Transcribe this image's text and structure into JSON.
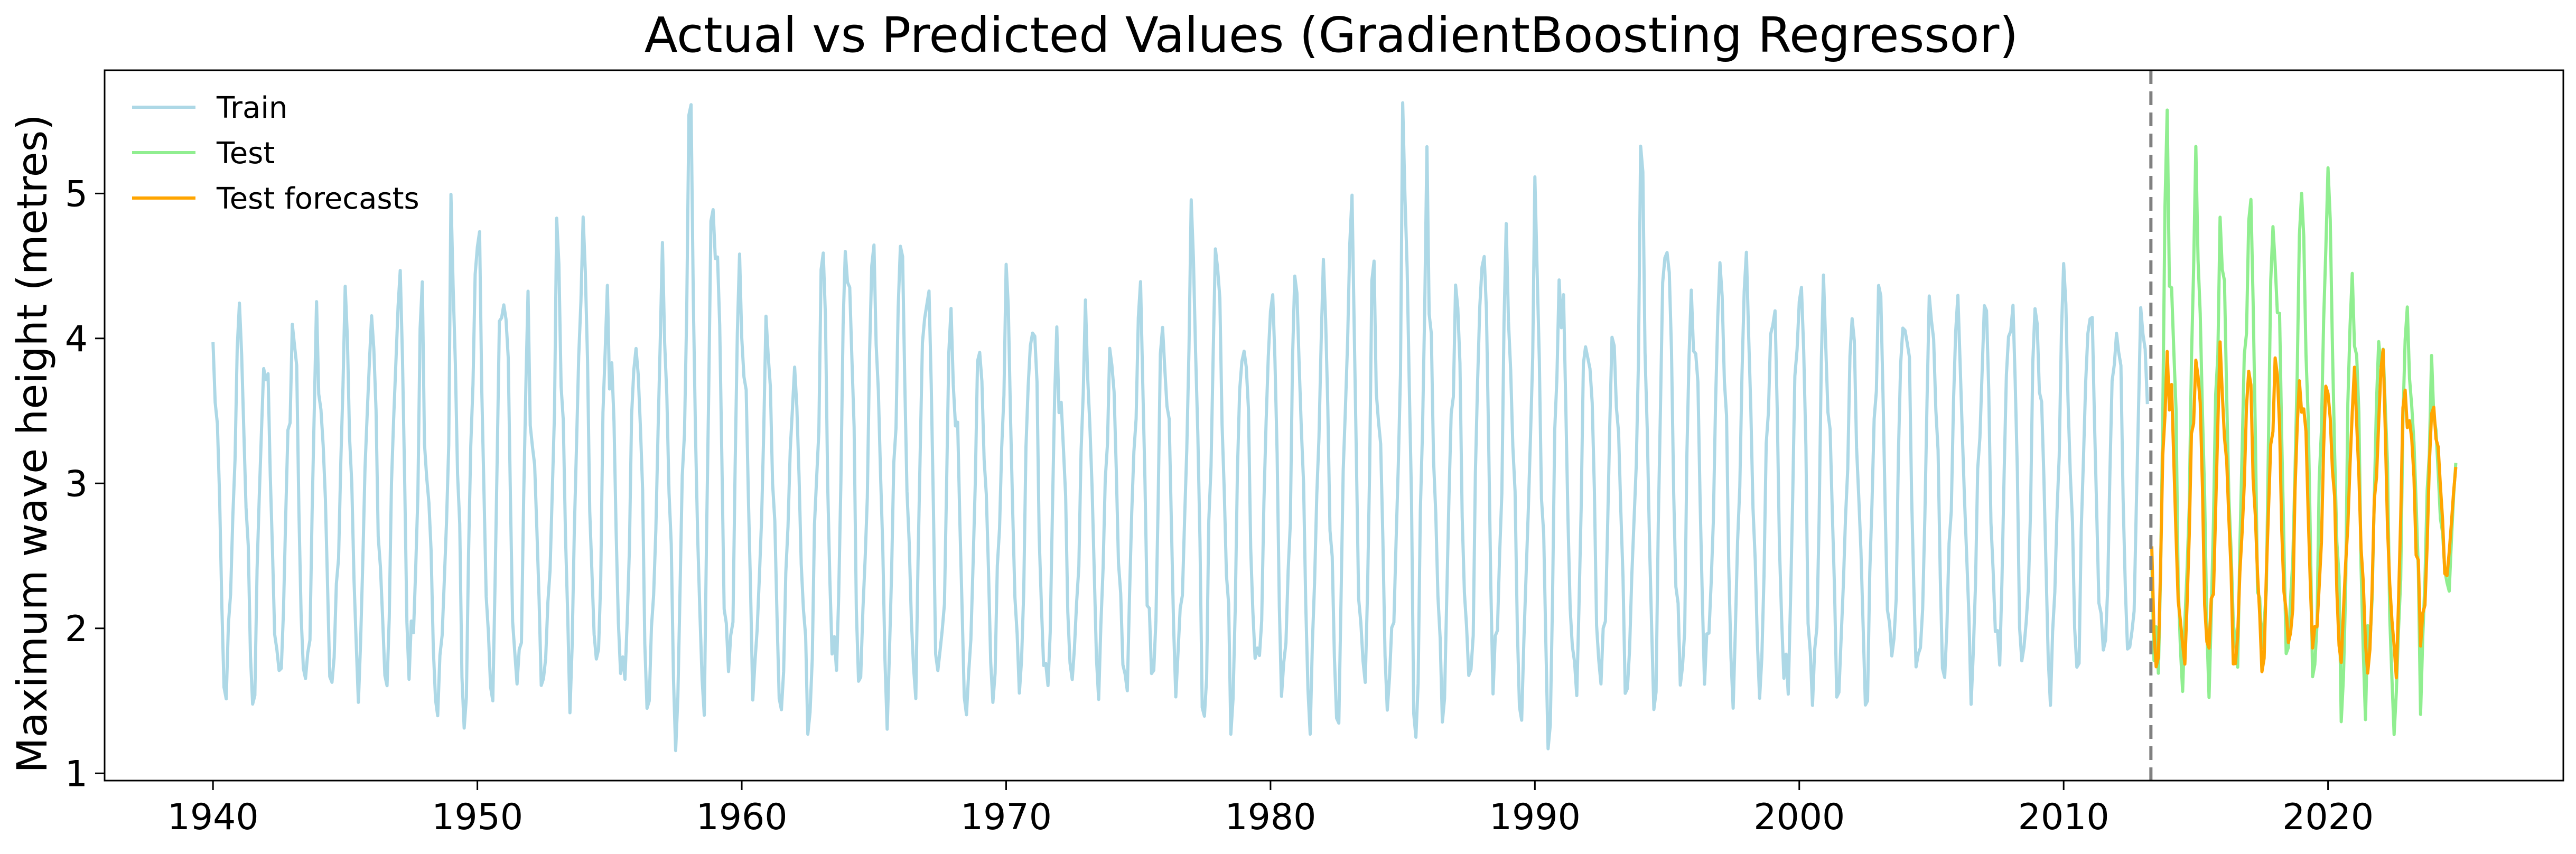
{
  "chart_data": {
    "type": "line",
    "title": "Actual vs Predicted Values (GradientBoosting Regressor)",
    "xlabel": "",
    "ylabel": "Maximum wave height (metres)",
    "xlim": [
      1935.9,
      2028.9
    ],
    "ylim": [
      0.95,
      5.85
    ],
    "x_ticks": [
      1940,
      1950,
      1960,
      1970,
      1980,
      1990,
      2000,
      2010,
      2020
    ],
    "y_ticks": [
      1,
      2,
      3,
      4,
      5
    ],
    "grid": false,
    "legend_position": "top-left",
    "split_line": {
      "x": 2013.3,
      "style": "dashed",
      "color": "#808080"
    },
    "series": [
      {
        "name": "Train",
        "color": "#add8e6",
        "x_start": 1940.0,
        "x_end": 2013.2,
        "season_peaks": [
          3.95,
          4.1,
          3.7,
          4.17,
          3.75,
          4.2,
          4.0,
          4.5,
          3.3,
          4.75,
          4.62,
          4.3,
          3.5,
          4.72,
          4.6,
          3.85,
          4.05,
          4.4,
          5.5,
          4.65,
          4.1,
          3.85,
          3.6,
          4.65,
          4.62,
          4.4,
          4.55,
          4.35,
          3.75,
          3.9,
          4.3,
          4.1,
          3.7,
          4.1,
          3.7,
          4.3,
          3.85,
          4.95,
          4.3,
          3.9,
          4.5,
          4.2,
          4.3,
          4.85,
          3.7,
          5.58,
          4.05,
          4.3,
          4.8,
          4.1,
          4.75,
          4.2,
          4.0,
          3.9,
          5.2,
          4.5,
          4.1,
          4.6,
          4.3,
          4.15,
          4.5,
          3.9,
          4.05,
          4.3,
          4.2,
          4.25,
          4.05,
          4.2,
          4.3,
          4.05,
          4.4,
          4.1,
          4.12,
          4.18
        ],
        "season_troughs": [
          1.65,
          1.55,
          1.7,
          1.5,
          1.6,
          1.75,
          1.6,
          1.8,
          1.5,
          1.45,
          1.55,
          1.5,
          1.6,
          1.7,
          1.8,
          1.55,
          1.6,
          1.35,
          1.55,
          1.6,
          1.7,
          1.6,
          1.35,
          1.6,
          1.7,
          1.55,
          1.65,
          1.75,
          1.35,
          1.6,
          1.7,
          1.5,
          1.6,
          1.75,
          1.65,
          1.55,
          1.8,
          1.5,
          1.45,
          1.7,
          1.6,
          1.55,
          1.4,
          1.55,
          1.65,
          1.35,
          1.5,
          1.55,
          1.7,
          1.6,
          1.3,
          1.55,
          1.6,
          1.65,
          1.6,
          1.55,
          1.75,
          1.65,
          1.7,
          1.6,
          1.4,
          1.65,
          1.55,
          1.8,
          1.6,
          1.75,
          1.7,
          1.8,
          1.75,
          1.6,
          1.8,
          1.85,
          1.7,
          1.8
        ]
      },
      {
        "name": "Test",
        "color": "#90ee90",
        "x_start": 2013.3,
        "x_end": 2024.9,
        "season_peaks": [
          5.65,
          4.6,
          5.05,
          4.4,
          4.95,
          4.6,
          5.0,
          4.9,
          4.0,
          4.1,
          4.05,
          3.4
        ],
        "season_troughs": [
          1.55,
          1.6,
          1.8,
          1.85,
          1.75,
          1.8,
          1.9,
          1.55,
          1.8,
          1.2,
          1.65,
          2.3
        ]
      },
      {
        "name": "Test forecasts",
        "color": "#ffa500",
        "x_start": 2013.3,
        "x_end": 2024.9,
        "season_peaks": [
          4.15,
          3.6,
          3.95,
          3.6,
          3.7,
          3.8,
          3.65,
          3.65,
          3.6,
          3.85,
          3.5,
          3.5
        ],
        "season_troughs": [
          1.8,
          1.75,
          1.85,
          1.8,
          1.8,
          1.85,
          1.85,
          1.9,
          1.8,
          1.7,
          1.85,
          2.4
        ]
      }
    ]
  }
}
